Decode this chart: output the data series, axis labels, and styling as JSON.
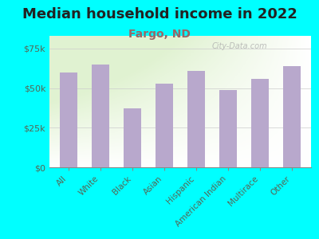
{
  "title": "Median household income in 2022",
  "subtitle": "Fargo, ND",
  "categories": [
    "All",
    "White",
    "Black",
    "Asian",
    "Hispanic",
    "American Indian",
    "Multirace",
    "Other"
  ],
  "values": [
    60000,
    65000,
    37000,
    53000,
    61000,
    49000,
    56000,
    64000
  ],
  "bar_color": "#b8a8cc",
  "background_color": "#00ffff",
  "title_color": "#222222",
  "subtitle_color": "#996666",
  "ytick_color": "#556655",
  "xtick_color": "#556655",
  "ylabel_ticks": [
    0,
    25000,
    50000,
    75000
  ],
  "ylabel_labels": [
    "$0",
    "$25k",
    "$50k",
    "$75k"
  ],
  "ylim": [
    0,
    83000
  ],
  "watermark": "City-Data.com",
  "title_fontsize": 13,
  "subtitle_fontsize": 10,
  "tick_fontsize": 8,
  "xtick_fontsize": 7.5
}
